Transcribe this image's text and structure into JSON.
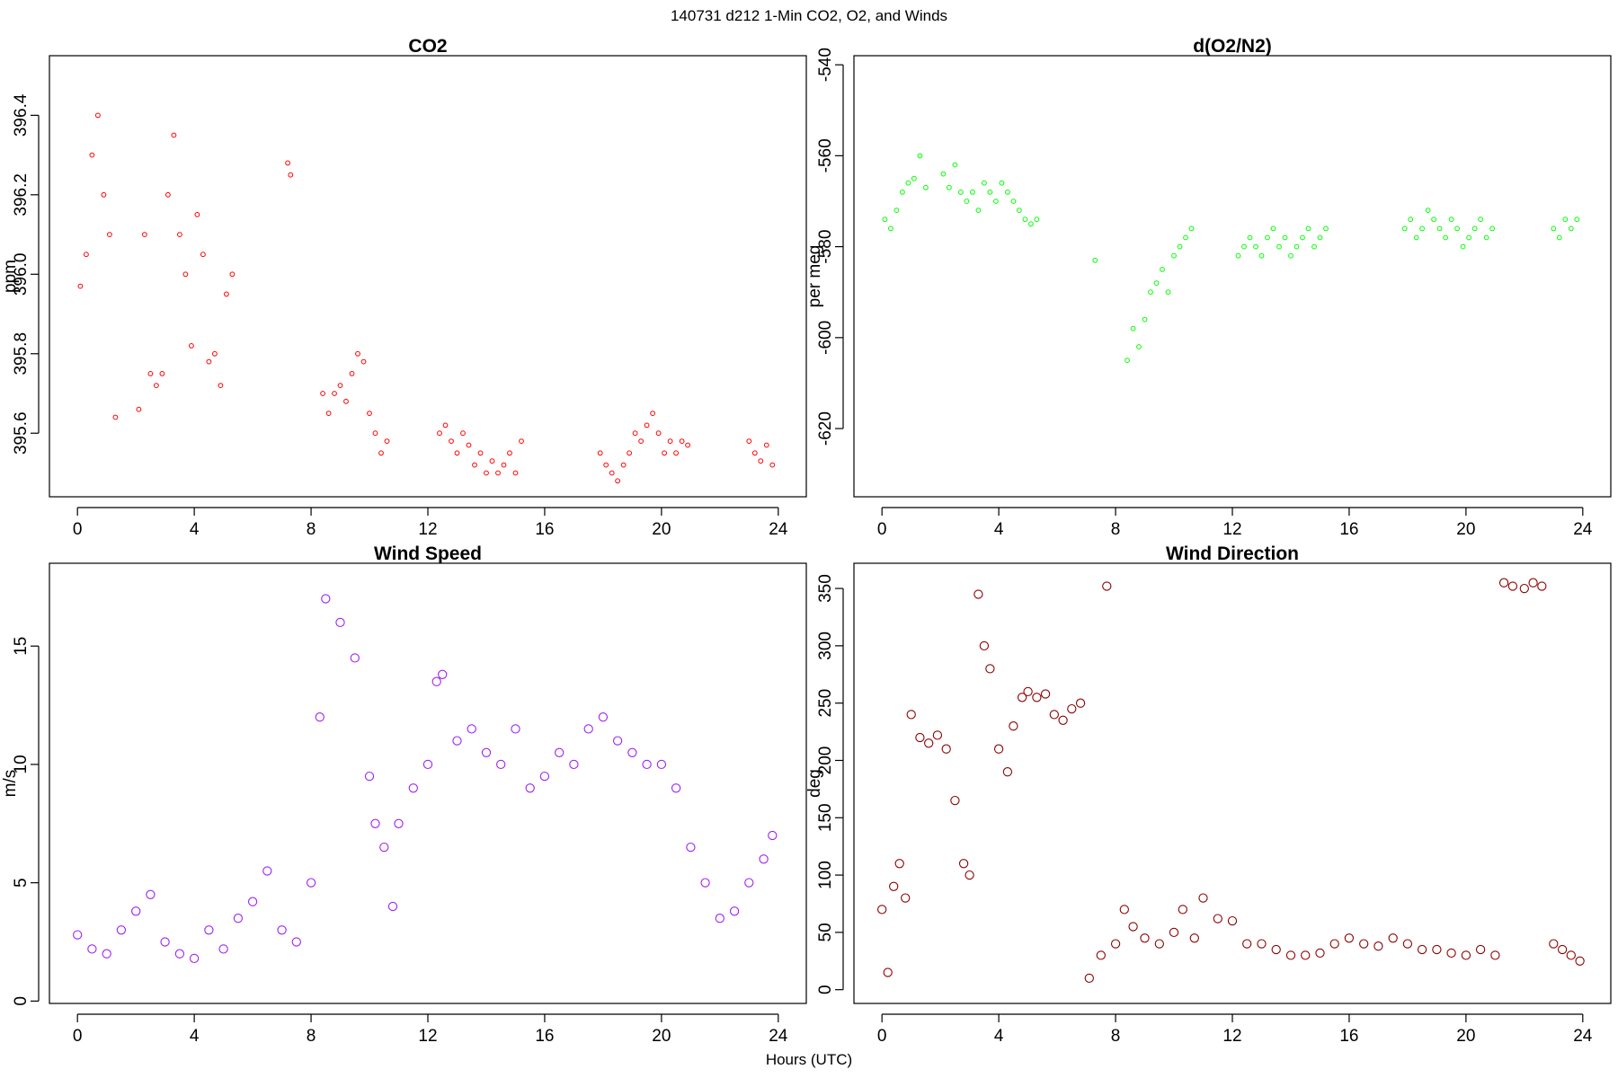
{
  "figure": {
    "title": "140731   d212   1-Min CO2, O2, and Winds",
    "xlabel": "Hours (UTC)"
  },
  "chart_data": [
    {
      "type": "scatter",
      "title": "CO2",
      "ylabel": "ppm",
      "xlim": [
        -0.96,
        24.96
      ],
      "ylim": [
        395.44,
        396.55
      ],
      "xticks": [
        0,
        4,
        8,
        12,
        16,
        20,
        24
      ],
      "yticks": [
        395.6,
        395.8,
        396.0,
        396.2,
        396.4
      ],
      "ytick_labels": [
        "395.6",
        "395.8",
        "396.0",
        "396.2",
        "396.4"
      ],
      "color": "#ff0000",
      "marker": "open-circle-small",
      "x": [
        0.1,
        0.3,
        0.5,
        0.7,
        0.9,
        1.1,
        1.3,
        2.1,
        2.3,
        2.5,
        2.7,
        2.9,
        3.1,
        3.3,
        3.5,
        3.7,
        3.9,
        4.1,
        4.3,
        4.5,
        4.7,
        4.9,
        5.1,
        5.3,
        7.2,
        7.3,
        8.4,
        8.6,
        8.8,
        9.0,
        9.2,
        9.4,
        9.6,
        9.8,
        10.0,
        10.2,
        10.4,
        10.6,
        12.4,
        12.6,
        12.8,
        13.0,
        13.2,
        13.4,
        13.6,
        13.8,
        14.0,
        14.2,
        14.4,
        14.6,
        14.8,
        15.0,
        15.2,
        17.9,
        18.1,
        18.3,
        18.5,
        18.7,
        18.9,
        19.1,
        19.3,
        19.5,
        19.7,
        19.9,
        20.1,
        20.3,
        20.5,
        20.7,
        20.9,
        23.0,
        23.2,
        23.4,
        23.6,
        23.8
      ],
      "y": [
        395.97,
        396.05,
        396.3,
        396.4,
        396.2,
        396.1,
        395.64,
        395.66,
        396.1,
        395.75,
        395.72,
        395.75,
        396.2,
        396.35,
        396.1,
        396.0,
        395.82,
        396.15,
        396.05,
        395.78,
        395.8,
        395.72,
        395.95,
        396.0,
        396.28,
        396.25,
        395.7,
        395.65,
        395.7,
        395.72,
        395.68,
        395.75,
        395.8,
        395.78,
        395.65,
        395.6,
        395.55,
        395.58,
        395.6,
        395.62,
        395.58,
        395.55,
        395.6,
        395.57,
        395.52,
        395.55,
        395.5,
        395.53,
        395.5,
        395.52,
        395.55,
        395.5,
        395.58,
        395.55,
        395.52,
        395.5,
        395.48,
        395.52,
        395.55,
        395.6,
        395.58,
        395.62,
        395.65,
        395.6,
        395.55,
        395.58,
        395.55,
        395.58,
        395.57,
        395.58,
        395.55,
        395.53,
        395.57,
        395.52
      ]
    },
    {
      "type": "scatter",
      "title": "d(O2/N2)",
      "ylabel": "per meg",
      "xlim": [
        -0.96,
        24.96
      ],
      "ylim": [
        -635,
        -538
      ],
      "xticks": [
        0,
        4,
        8,
        12,
        16,
        20,
        24
      ],
      "yticks": [
        -620,
        -600,
        -580,
        -560,
        -540
      ],
      "ytick_labels": [
        "-620",
        "-600",
        "-580",
        "-560",
        "-540"
      ],
      "color": "#00ff00",
      "marker": "open-circle-small",
      "x": [
        0.1,
        0.3,
        0.5,
        0.7,
        0.9,
        1.1,
        1.3,
        1.5,
        2.1,
        2.3,
        2.5,
        2.7,
        2.9,
        3.1,
        3.3,
        3.5,
        3.7,
        3.9,
        4.1,
        4.3,
        4.5,
        4.7,
        4.9,
        5.1,
        5.3,
        7.3,
        8.4,
        8.6,
        8.8,
        9.0,
        9.2,
        9.4,
        9.6,
        9.8,
        10.0,
        10.2,
        10.4,
        10.6,
        12.2,
        12.4,
        12.6,
        12.8,
        13.0,
        13.2,
        13.4,
        13.6,
        13.8,
        14.0,
        14.2,
        14.4,
        14.6,
        14.8,
        15.0,
        15.2,
        17.9,
        18.1,
        18.3,
        18.5,
        18.7,
        18.9,
        19.1,
        19.3,
        19.5,
        19.7,
        19.9,
        20.1,
        20.3,
        20.5,
        20.7,
        20.9,
        23.0,
        23.2,
        23.4,
        23.6,
        23.8
      ],
      "y": [
        -574,
        -576,
        -572,
        -568,
        -566,
        -565,
        -560,
        -567,
        -564,
        -567,
        -562,
        -568,
        -570,
        -568,
        -572,
        -566,
        -568,
        -570,
        -566,
        -568,
        -570,
        -572,
        -574,
        -575,
        -574,
        -583,
        -605,
        -598,
        -602,
        -596,
        -590,
        -588,
        -585,
        -590,
        -582,
        -580,
        -578,
        -576,
        -582,
        -580,
        -578,
        -580,
        -582,
        -578,
        -576,
        -580,
        -578,
        -582,
        -580,
        -578,
        -576,
        -580,
        -578,
        -576,
        -576,
        -574,
        -578,
        -576,
        -572,
        -574,
        -576,
        -578,
        -574,
        -576,
        -580,
        -578,
        -576,
        -574,
        -578,
        -576,
        -576,
        -578,
        -574,
        -576,
        -574
      ]
    },
    {
      "type": "scatter",
      "title": "Wind Speed",
      "ylabel": "m/s",
      "xlim": [
        -0.96,
        24.96
      ],
      "ylim": [
        -0.1,
        18.5
      ],
      "xticks": [
        0,
        4,
        8,
        12,
        16,
        20,
        24
      ],
      "yticks": [
        0,
        5,
        10,
        15
      ],
      "ytick_labels": [
        "0",
        "5",
        "10",
        "15"
      ],
      "color": "#a020f0",
      "marker": "open-circle",
      "x": [
        0.0,
        0.5,
        1.0,
        1.5,
        2.0,
        2.5,
        3.0,
        3.5,
        4.0,
        4.5,
        5.0,
        5.5,
        6.0,
        6.5,
        7.0,
        7.5,
        8.0,
        8.3,
        8.5,
        9.0,
        9.5,
        10.0,
        10.2,
        10.5,
        10.8,
        11.0,
        11.5,
        12.0,
        12.3,
        12.5,
        13.0,
        13.5,
        14.0,
        14.5,
        15.0,
        15.5,
        16.0,
        16.5,
        17.0,
        17.5,
        18.0,
        18.5,
        19.0,
        19.5,
        20.0,
        20.5,
        21.0,
        21.5,
        22.0,
        22.5,
        23.0,
        23.5,
        23.8
      ],
      "y": [
        2.8,
        2.2,
        2.0,
        3.0,
        3.8,
        4.5,
        2.5,
        2.0,
        1.8,
        3.0,
        2.2,
        3.5,
        4.2,
        5.5,
        3.0,
        2.5,
        5.0,
        12.0,
        17.0,
        16.0,
        14.5,
        9.5,
        7.5,
        6.5,
        4.0,
        7.5,
        9.0,
        10.0,
        13.5,
        13.8,
        11.0,
        11.5,
        10.5,
        10.0,
        11.5,
        9.0,
        9.5,
        10.5,
        10.0,
        11.5,
        12.0,
        11.0,
        10.5,
        10.0,
        10.0,
        9.0,
        6.5,
        5.0,
        3.5,
        3.8,
        5.0,
        6.0,
        7.0
      ]
    },
    {
      "type": "scatter",
      "title": "Wind Direction",
      "ylabel": "deg",
      "xlim": [
        -0.96,
        24.96
      ],
      "ylim": [
        -12,
        372
      ],
      "xticks": [
        0,
        4,
        8,
        12,
        16,
        20,
        24
      ],
      "yticks": [
        0,
        50,
        100,
        150,
        200,
        250,
        300,
        350
      ],
      "ytick_labels": [
        "0",
        "50",
        "100",
        "150",
        "200",
        "250",
        "300",
        "350"
      ],
      "color": "#8b0000",
      "marker": "open-circle",
      "x": [
        0.0,
        0.2,
        0.4,
        0.6,
        0.8,
        1.0,
        1.3,
        1.6,
        1.9,
        2.2,
        2.5,
        2.8,
        3.0,
        3.3,
        3.5,
        3.7,
        4.0,
        4.3,
        4.5,
        4.8,
        5.0,
        5.3,
        5.6,
        5.9,
        6.2,
        6.5,
        6.8,
        7.1,
        7.5,
        7.7,
        8.0,
        8.3,
        8.6,
        9.0,
        9.5,
        10.0,
        10.3,
        10.7,
        11.0,
        11.5,
        12.0,
        12.5,
        13.0,
        13.5,
        14.0,
        14.5,
        15.0,
        15.5,
        16.0,
        16.5,
        17.0,
        17.5,
        18.0,
        18.5,
        19.0,
        19.5,
        20.0,
        20.5,
        21.0,
        21.3,
        21.6,
        22.0,
        22.3,
        22.6,
        23.0,
        23.3,
        23.6,
        23.9
      ],
      "y": [
        70,
        15,
        90,
        110,
        80,
        240,
        220,
        215,
        222,
        210,
        165,
        110,
        100,
        345,
        300,
        280,
        210,
        190,
        230,
        255,
        260,
        255,
        258,
        240,
        235,
        245,
        250,
        10,
        30,
        352,
        40,
        70,
        55,
        45,
        40,
        50,
        70,
        45,
        80,
        62,
        60,
        40,
        40,
        35,
        30,
        30,
        32,
        40,
        45,
        40,
        38,
        45,
        40,
        35,
        35,
        32,
        30,
        35,
        30,
        355,
        352,
        350,
        355,
        352,
        40,
        35,
        30,
        25
      ]
    }
  ]
}
